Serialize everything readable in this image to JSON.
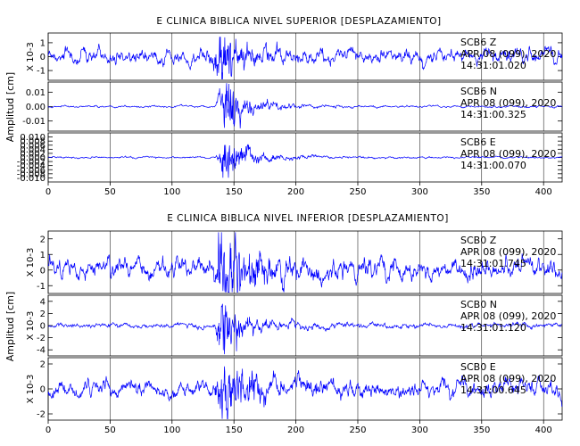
{
  "figure": {
    "background": "#ffffff",
    "trace_color": "#0000ff",
    "frame_color": "#000000"
  },
  "chart_data": [
    {
      "type": "line",
      "title": "E CLINICA BIBLICA NIVEL SUPERIOR [DESPLAZAMIENTO]",
      "ylabel": "Amplitud [cm]",
      "xlim": [
        0,
        415
      ],
      "xticks": [
        0,
        50,
        100,
        150,
        200,
        250,
        300,
        350,
        400
      ],
      "panels": [
        {
          "id": "sup-z",
          "yscale_label": "X 10-3",
          "ylim": [
            -1.7,
            1.7
          ],
          "yticks": [
            -1,
            0,
            1
          ],
          "label": [
            "SCB6   Z",
            "APR 08 (099), 2020",
            "14:31:01.020"
          ],
          "signal": {
            "onset": 125,
            "peak": 140,
            "peak_amp": 1.6,
            "noise": 0.45,
            "decay": 28
          }
        },
        {
          "id": "sup-n",
          "ylim": [
            -0.017,
            0.017
          ],
          "yticks": [
            -0.01,
            0.0,
            0.01
          ],
          "ytick_labels": [
            "-0.01",
            "0.00",
            "0.01"
          ],
          "label": [
            "SCB6   N",
            "APR 08 (099), 2020",
            "14:31:00.325"
          ],
          "signal": {
            "onset": 135,
            "peak": 143,
            "peak_amp": 0.016,
            "noise": 0.0006,
            "decay": 22
          }
        },
        {
          "id": "sup-e",
          "ylim": [
            -0.012,
            0.012
          ],
          "yticks": [
            -0.01,
            -0.008,
            -0.006,
            -0.004,
            -0.002,
            0.0,
            0.002,
            0.004,
            0.006,
            0.008,
            0.01
          ],
          "ytick_labels": [
            "-0.010",
            "-0.008",
            "-0.006",
            "-0.004",
            "-0.002",
            "0.000",
            "0.002",
            "0.004",
            "0.006",
            "0.008",
            "0.010"
          ],
          "label": [
            "SCB6   E",
            "APR 08 (099), 2020",
            "14:31:00.070"
          ],
          "signal": {
            "onset": 135,
            "peak": 143,
            "peak_amp": 0.011,
            "noise": 0.0004,
            "decay": 22
          }
        }
      ]
    },
    {
      "type": "line",
      "title": "E CLINICA BIBLICA NIVEL INFERIOR [DESPLAZAMIENTO]",
      "ylabel": "Amplitud [cm]",
      "xlim": [
        0,
        415
      ],
      "xticks": [
        0,
        50,
        100,
        150,
        200,
        250,
        300,
        350,
        400
      ],
      "panels": [
        {
          "id": "inf-z",
          "yscale_label": "X 10-3",
          "ylim": [
            -1.5,
            2.5
          ],
          "yticks": [
            -1,
            0,
            1,
            2
          ],
          "label": [
            "SCB0   Z",
            "APR 08 (099), 2020",
            "14:31:01.745"
          ],
          "signal": {
            "onset": 132,
            "peak": 140,
            "peak_amp": 2.3,
            "noise": 0.55,
            "decay": 35
          }
        },
        {
          "id": "inf-n",
          "yscale_label": "X 10-3",
          "ylim": [
            -5,
            5
          ],
          "yticks": [
            -4,
            -2,
            0,
            2,
            4
          ],
          "label": [
            "SCB0   N",
            "APR 08 (099), 2020",
            "14:31:01.120"
          ],
          "signal": {
            "onset": 134,
            "peak": 139,
            "peak_amp": 4.2,
            "noise": 0.35,
            "decay": 25
          }
        },
        {
          "id": "inf-e",
          "yscale_label": "X 10-3",
          "ylim": [
            -2.5,
            2.5
          ],
          "yticks": [
            -2,
            0,
            2
          ],
          "label": [
            "SCB0   E",
            "APR 08 (099), 2020",
            "14:31:00.645"
          ],
          "signal": {
            "onset": 132,
            "peak": 142,
            "peak_amp": 2.1,
            "noise": 0.6,
            "decay": 35
          }
        }
      ]
    }
  ]
}
